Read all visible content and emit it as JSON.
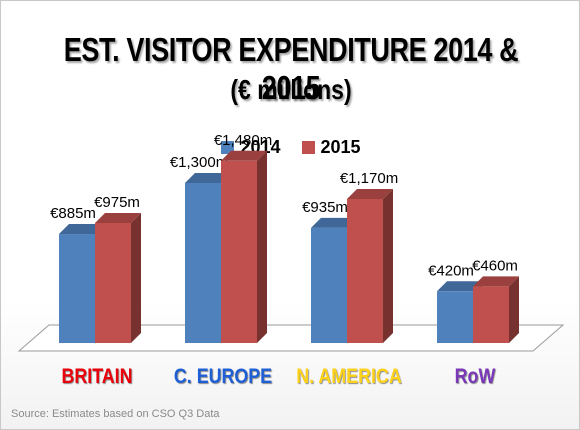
{
  "chart_data": {
    "type": "bar",
    "title": "EST. VISITOR EXPENDITURE 2014 & 2015",
    "subtitle": "(€ millions)",
    "categories": [
      "BRITAIN",
      "C. EUROPE",
      "N. AMERICA",
      "RoW"
    ],
    "category_colors": [
      "#e8000b",
      "#1f5fd6",
      "#ffd21a",
      "#7a38b8"
    ],
    "series": [
      {
        "name": "2014",
        "color": "#4f81bd",
        "values": [
          885,
          1300,
          935,
          420
        ],
        "labels": [
          "€885m",
          "€1,300m",
          "€935m",
          "€420m"
        ]
      },
      {
        "name": "2015",
        "color": "#c0504d",
        "values": [
          975,
          1480,
          1170,
          460
        ],
        "labels": [
          "€975m",
          "€1,480m",
          "€1,170m",
          "€460m"
        ]
      }
    ],
    "ylim": [
      0,
      1600
    ],
    "legend_position": "top",
    "grid": false,
    "three_d": true
  },
  "source_note": "Source: Estimates based on CSO Q3 Data"
}
